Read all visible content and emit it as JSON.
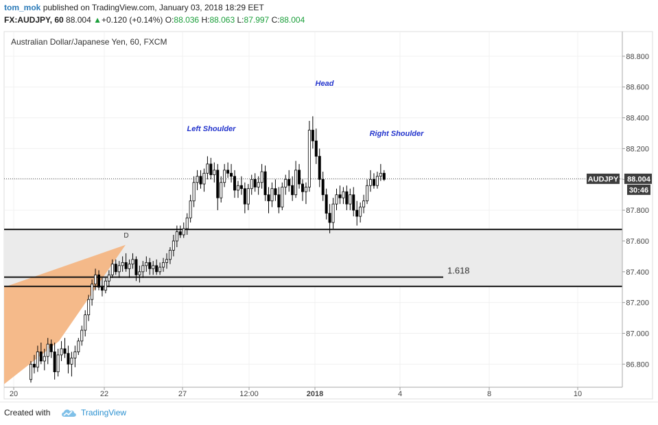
{
  "header": {
    "author": "tom_mok",
    "published_text": "published on TradingView.com, January 03, 2018 18:29 EET",
    "symbol": "FX:AUDJPY, 60",
    "last": "88.004",
    "change_arrow": "▲",
    "change": "+0.120 (+0.14%)",
    "o_label": "O:",
    "o_value": "88.036",
    "h_label": "H:",
    "h_value": "88.063",
    "l_label": "L:",
    "l_value": "87.997",
    "c_label": "C:",
    "c_value": "88.004"
  },
  "footer": {
    "created_with": "Created with",
    "brand": "TradingView"
  },
  "chart_data": {
    "type": "candlestick",
    "title": "Australian Dollar/Japanese Yen, 60, FXCM",
    "ylim": [
      86.65,
      88.96
    ],
    "price_ticks": [
      "88.800",
      "88.600",
      "88.400",
      "88.200",
      "88.000",
      "87.800",
      "87.600",
      "87.400",
      "87.200",
      "87.000",
      "86.800"
    ],
    "time_ticks": [
      "20",
      "22",
      "27",
      "12:00",
      "2018",
      "4",
      "8",
      "10"
    ],
    "current_price": {
      "symbol": "AUDJPY",
      "value": "88.004",
      "countdown": "30:46"
    },
    "levels": [
      87.675,
      87.365,
      87.305
    ],
    "fib_label": "1.618",
    "pattern_label_d": "D",
    "annotations": [
      "Left Shoulder",
      "Head",
      "Right Shoulder"
    ],
    "colors": {
      "zone": "#ebebeb",
      "harmonic": "#f4b684",
      "annotation": "#2233cc",
      "price_label": "#3d3d3d",
      "candle": "#000000"
    },
    "grid": true,
    "candles": [
      [
        86.7,
        86.82,
        86.68,
        86.8
      ],
      [
        86.8,
        86.86,
        86.74,
        86.78
      ],
      [
        86.78,
        86.92,
        86.75,
        86.88
      ],
      [
        86.88,
        86.94,
        86.8,
        86.82
      ],
      [
        86.82,
        86.9,
        86.76,
        86.85
      ],
      [
        86.85,
        86.97,
        86.8,
        86.93
      ],
      [
        86.93,
        86.96,
        86.84,
        86.88
      ],
      [
        86.88,
        86.94,
        86.7,
        86.75
      ],
      [
        86.75,
        86.9,
        86.72,
        86.86
      ],
      [
        86.86,
        86.95,
        86.82,
        86.9
      ],
      [
        86.9,
        86.97,
        86.84,
        86.87
      ],
      [
        86.87,
        86.92,
        86.74,
        86.8
      ],
      [
        86.8,
        86.88,
        86.72,
        86.84
      ],
      [
        86.84,
        86.92,
        86.78,
        86.88
      ],
      [
        86.88,
        86.97,
        86.86,
        86.95
      ],
      [
        86.95,
        87.05,
        86.92,
        87.02
      ],
      [
        87.02,
        87.15,
        86.98,
        87.12
      ],
      [
        87.12,
        87.25,
        87.08,
        87.22
      ],
      [
        87.22,
        87.35,
        87.18,
        87.32
      ],
      [
        87.32,
        87.42,
        87.28,
        87.38
      ],
      [
        87.38,
        87.41,
        87.28,
        87.3
      ],
      [
        87.3,
        87.36,
        87.24,
        87.28
      ],
      [
        87.28,
        87.36,
        87.26,
        87.34
      ],
      [
        87.34,
        87.41,
        87.3,
        87.38
      ],
      [
        87.38,
        87.48,
        87.36,
        87.45
      ],
      [
        87.45,
        87.48,
        87.38,
        87.4
      ],
      [
        87.4,
        87.47,
        87.36,
        87.44
      ],
      [
        87.44,
        87.5,
        87.4,
        87.46
      ],
      [
        87.46,
        87.52,
        87.4,
        87.42
      ],
      [
        87.42,
        87.48,
        87.36,
        87.45
      ],
      [
        87.45,
        87.52,
        87.42,
        87.48
      ],
      [
        87.48,
        87.5,
        87.34,
        87.38
      ],
      [
        87.38,
        87.44,
        87.33,
        87.4
      ],
      [
        87.4,
        87.47,
        87.36,
        87.44
      ],
      [
        87.44,
        87.5,
        87.4,
        87.46
      ],
      [
        87.46,
        87.49,
        87.38,
        87.42
      ],
      [
        87.42,
        87.47,
        87.38,
        87.44
      ],
      [
        87.44,
        87.48,
        87.38,
        87.4
      ],
      [
        87.4,
        87.46,
        87.38,
        87.43
      ],
      [
        87.43,
        87.49,
        87.4,
        87.46
      ],
      [
        87.46,
        87.52,
        87.42,
        87.48
      ],
      [
        87.48,
        87.56,
        87.45,
        87.54
      ],
      [
        87.54,
        87.64,
        87.5,
        87.6
      ],
      [
        87.6,
        87.7,
        87.56,
        87.66
      ],
      [
        87.66,
        87.7,
        87.62,
        87.64
      ],
      [
        87.64,
        87.72,
        87.62,
        87.68
      ],
      [
        87.68,
        87.78,
        87.64,
        87.75
      ],
      [
        87.75,
        87.9,
        87.72,
        87.86
      ],
      [
        87.86,
        88.02,
        87.82,
        87.98
      ],
      [
        87.98,
        88.06,
        87.93,
        88.02
      ],
      [
        88.02,
        88.06,
        87.94,
        87.97
      ],
      [
        87.97,
        88.07,
        87.92,
        88.04
      ],
      [
        88.04,
        88.15,
        88.0,
        88.1
      ],
      [
        88.1,
        88.14,
        88.0,
        88.03
      ],
      [
        88.03,
        88.11,
        87.98,
        88.06
      ],
      [
        88.06,
        88.1,
        87.8,
        87.88
      ],
      [
        87.88,
        88.02,
        87.85,
        87.98
      ],
      [
        87.98,
        88.1,
        87.95,
        88.06
      ],
      [
        88.06,
        88.11,
        88.01,
        88.04
      ],
      [
        88.04,
        88.1,
        87.98,
        88.02
      ],
      [
        88.02,
        88.06,
        87.88,
        87.93
      ],
      [
        87.93,
        87.99,
        87.88,
        87.96
      ],
      [
        87.96,
        88.02,
        87.9,
        87.94
      ],
      [
        87.94,
        87.98,
        87.78,
        87.84
      ],
      [
        87.84,
        87.97,
        87.8,
        87.94
      ],
      [
        87.94,
        88.03,
        87.9,
        88.0
      ],
      [
        88.0,
        88.04,
        87.92,
        87.95
      ],
      [
        87.95,
        88.02,
        87.9,
        87.98
      ],
      [
        87.98,
        88.1,
        87.94,
        88.05
      ],
      [
        88.05,
        88.09,
        87.86,
        87.9
      ],
      [
        87.9,
        87.95,
        87.78,
        87.86
      ],
      [
        87.86,
        87.98,
        87.82,
        87.94
      ],
      [
        87.94,
        88.0,
        87.86,
        87.9
      ],
      [
        87.9,
        87.95,
        87.78,
        87.82
      ],
      [
        87.82,
        87.98,
        87.8,
        87.95
      ],
      [
        87.95,
        88.03,
        87.9,
        88.0
      ],
      [
        88.0,
        88.06,
        87.92,
        87.96
      ],
      [
        87.96,
        88.02,
        87.86,
        87.9
      ],
      [
        87.9,
        88.12,
        87.88,
        88.06
      ],
      [
        88.06,
        88.1,
        87.94,
        87.97
      ],
      [
        87.97,
        88.0,
        87.86,
        87.92
      ],
      [
        87.92,
        87.98,
        87.84,
        87.95
      ],
      [
        87.95,
        88.38,
        87.92,
        88.32
      ],
      [
        88.32,
        88.41,
        88.2,
        88.25
      ],
      [
        88.25,
        88.33,
        88.1,
        88.15
      ],
      [
        88.15,
        88.2,
        87.95,
        88.0
      ],
      [
        88.0,
        88.05,
        87.86,
        87.9
      ],
      [
        87.9,
        87.94,
        87.74,
        87.78
      ],
      [
        87.78,
        87.84,
        87.65,
        87.72
      ],
      [
        87.72,
        87.88,
        87.68,
        87.84
      ],
      [
        87.84,
        87.94,
        87.8,
        87.9
      ],
      [
        87.9,
        87.96,
        87.84,
        87.88
      ],
      [
        87.88,
        87.95,
        87.84,
        87.92
      ],
      [
        87.92,
        87.96,
        87.8,
        87.84
      ],
      [
        87.84,
        87.94,
        87.8,
        87.9
      ],
      [
        87.9,
        87.95,
        87.76,
        87.8
      ],
      [
        87.8,
        87.86,
        87.7,
        87.76
      ],
      [
        87.76,
        87.85,
        87.72,
        87.82
      ],
      [
        87.82,
        87.9,
        87.78,
        87.86
      ],
      [
        87.86,
        88.0,
        87.84,
        87.96
      ],
      [
        87.96,
        88.06,
        87.92,
        88.0
      ],
      [
        88.0,
        88.04,
        87.94,
        87.96
      ],
      [
        87.96,
        88.05,
        87.94,
        88.02
      ],
      [
        88.02,
        88.1,
        87.99,
        88.04
      ],
      [
        88.04,
        88.06,
        87.99,
        88.0
      ]
    ]
  }
}
